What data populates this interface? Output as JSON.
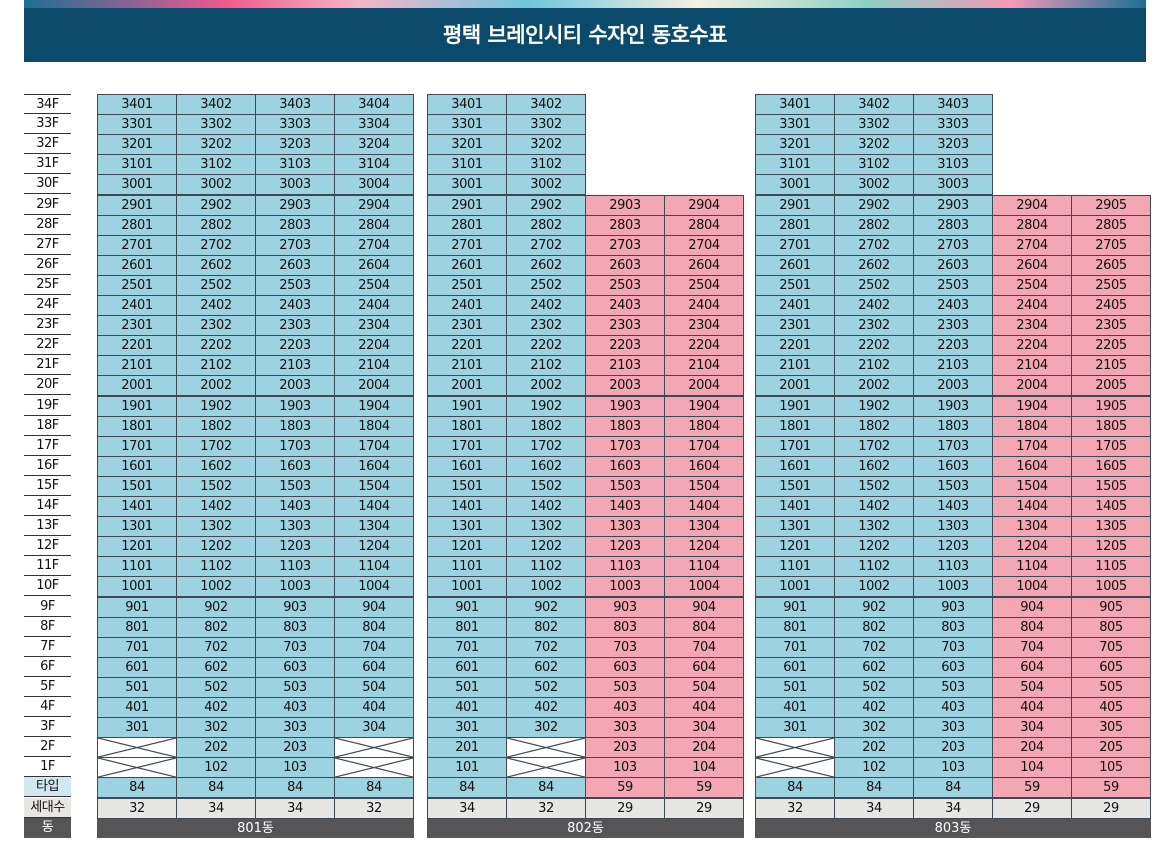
{
  "title": "평택 브레인시티 수자인 동호수표",
  "floors": [
    "34F",
    "33F",
    "32F",
    "31F",
    "30F",
    "29F",
    "28F",
    "27F",
    "26F",
    "25F",
    "24F",
    "23F",
    "22F",
    "21F",
    "20F",
    "19F",
    "18F",
    "17F",
    "16F",
    "15F",
    "14F",
    "13F",
    "12F",
    "11F",
    "10F",
    "9F",
    "8F",
    "7F",
    "6F",
    "5F",
    "4F",
    "3F",
    "2F",
    "1F"
  ],
  "row_labels": {
    "type": "타입",
    "households": "세대수",
    "building": "동"
  },
  "buildings": [
    {
      "name": "801동",
      "lines": [
        {
          "number": 1,
          "top_floor": 34,
          "bottom_floor": 3,
          "type": "84",
          "households": "32",
          "color": "#9dd3e1"
        },
        {
          "number": 2,
          "top_floor": 34,
          "bottom_floor": 1,
          "type": "84",
          "households": "34",
          "color": "#9dd3e1"
        },
        {
          "number": 3,
          "top_floor": 34,
          "bottom_floor": 1,
          "type": "84",
          "households": "34",
          "color": "#9dd3e1"
        },
        {
          "number": 4,
          "top_floor": 34,
          "bottom_floor": 3,
          "type": "84",
          "households": "32",
          "color": "#9dd3e1"
        }
      ]
    },
    {
      "name": "802동",
      "lines": [
        {
          "number": 1,
          "top_floor": 34,
          "bottom_floor": 1,
          "type": "84",
          "households": "34",
          "color": "#9dd3e1"
        },
        {
          "number": 2,
          "top_floor": 34,
          "bottom_floor": 3,
          "type": "84",
          "households": "32",
          "color": "#9dd3e1"
        },
        {
          "number": 3,
          "top_floor": 29,
          "bottom_floor": 1,
          "type": "59",
          "households": "29",
          "color": "#f3a6b3"
        },
        {
          "number": 4,
          "top_floor": 29,
          "bottom_floor": 1,
          "type": "59",
          "households": "29",
          "color": "#f3a6b3"
        }
      ]
    },
    {
      "name": "803동",
      "lines": [
        {
          "number": 1,
          "top_floor": 34,
          "bottom_floor": 3,
          "type": "84",
          "households": "32",
          "color": "#9dd3e1"
        },
        {
          "number": 2,
          "top_floor": 34,
          "bottom_floor": 1,
          "type": "84",
          "households": "34",
          "color": "#9dd3e1"
        },
        {
          "number": 3,
          "top_floor": 34,
          "bottom_floor": 1,
          "type": "84",
          "households": "34",
          "color": "#9dd3e1"
        },
        {
          "number": 4,
          "top_floor": 29,
          "bottom_floor": 1,
          "type": "59",
          "households": "29",
          "color": "#f3a6b3"
        },
        {
          "number": 5,
          "top_floor": 29,
          "bottom_floor": 1,
          "type": "59",
          "households": "29",
          "color": "#f3a6b3"
        }
      ]
    }
  ],
  "colors": {
    "type_84": "#9dd3e1",
    "type_59": "#f3a6b3",
    "banner": "#0c4a6b"
  }
}
